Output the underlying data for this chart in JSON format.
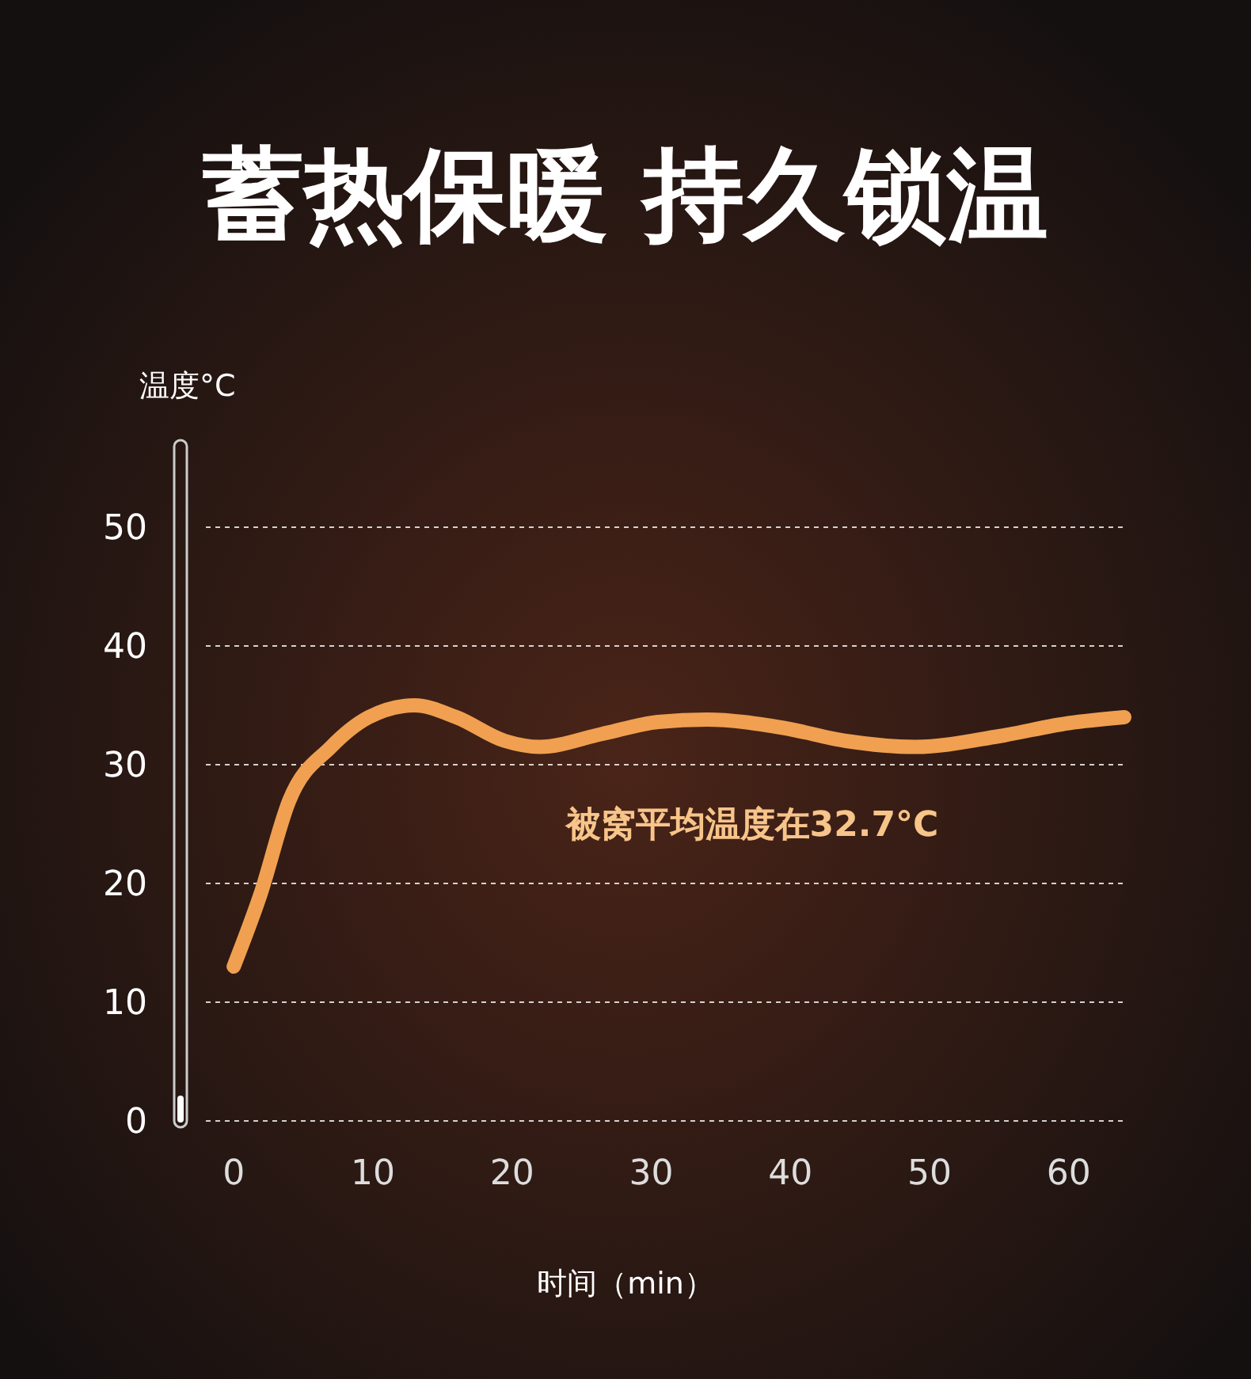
{
  "chart_data": {
    "type": "line",
    "title": "蓄热保暖 持久锁温",
    "xlabel": "时间（min）",
    "ylabel": "温度°C",
    "annotations": [
      "被窝平均温度在32.7°C"
    ],
    "x": [
      0,
      1.9,
      4,
      7,
      9.7,
      13,
      16,
      19.5,
      22,
      26.5,
      30.5,
      34,
      39.5,
      44,
      49,
      55,
      60,
      64
    ],
    "series": [
      {
        "color": "#f0a050",
        "values": [
          13,
          19,
          27,
          31.5,
          34,
          35,
          34,
          32,
          31.5,
          32.6,
          33.6,
          33.8,
          33.1,
          32,
          31.5,
          32.4,
          33.5,
          34
        ]
      }
    ],
    "xlim": [
      -2,
      64
    ],
    "xticks": [
      0,
      10,
      20,
      30,
      40,
      50,
      60
    ],
    "ylim": [
      0,
      50
    ],
    "yticks": [
      0,
      10,
      20,
      30,
      40,
      50
    ],
    "grid": "y",
    "line_style": "solid"
  }
}
